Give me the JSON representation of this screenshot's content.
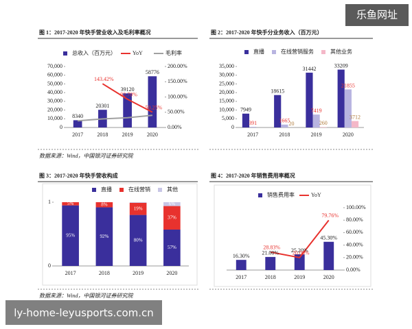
{
  "chart_data": [
    {
      "type": "bar_line",
      "title": "图 1：2017-2020 年快手营业收入及毛利率概况",
      "categories": [
        "2017",
        "2018",
        "2019",
        "2020"
      ],
      "series": [
        {
          "name": "总收入（百万元）",
          "type": "bar",
          "color": "#3a2f9c",
          "values": [
            8340,
            20301,
            39120,
            58776
          ]
        },
        {
          "name": "YoY",
          "type": "line",
          "axis": "y2",
          "color": "#e8322e",
          "values": [
            null,
            143.42,
            92.7,
            50.25
          ],
          "value_labels": [
            null,
            "143.42%",
            "92.70%",
            "50.25%"
          ]
        },
        {
          "name": "毛利率",
          "type": "line",
          "axis": "y2",
          "color": "#a0a0a0",
          "values": [
            22,
            28,
            32,
            40
          ]
        }
      ],
      "ylim": [
        0,
        70000
      ],
      "yticks": [
        0,
        {
          "value": 10000,
          "label": "10,000"
        },
        {
          "value": 20000,
          "label": "20,000"
        },
        {
          "value": 30000,
          "label": "30,000"
        },
        {
          "value": 40000,
          "label": "40,000"
        },
        {
          "value": 50000,
          "label": "50,000"
        },
        {
          "value": 60000,
          "label": "60,000"
        },
        {
          "value": 70000,
          "label": "70,000"
        }
      ],
      "y2lim": [
        0,
        200
      ],
      "y2ticks": [
        {
          "value": 0,
          "label": "0.00%"
        },
        {
          "value": 50,
          "label": "50.00%"
        },
        {
          "value": 100,
          "label": "100.00%"
        },
        {
          "value": 150,
          "label": "150.00%"
        },
        {
          "value": 200,
          "label": "200.00%"
        }
      ]
    },
    {
      "type": "bar",
      "title": "图 2：2017-2020 年快手分业务收入（百万元）",
      "categories": [
        "2017",
        "2018",
        "2019",
        "2020"
      ],
      "series": [
        {
          "name": "直播",
          "type": "bar",
          "color": "#3a2f9c",
          "values": [
            7949,
            18615,
            31442,
            33209
          ]
        },
        {
          "name": "在线营销服务",
          "type": "bar",
          "color": "#b8b4e0",
          "values": [
            391,
            1665,
            7419,
            21855
          ]
        },
        {
          "name": "其他业务",
          "type": "bar",
          "color": "#f4b8c8",
          "values": [
            null,
            20,
            260,
            3712
          ]
        }
      ],
      "ylim": [
        0,
        35000
      ],
      "yticks": [
        0,
        {
          "value": 5000,
          "label": "5,000"
        },
        {
          "value": 10000,
          "label": "10,000"
        },
        {
          "value": 15000,
          "label": "15,000"
        },
        {
          "value": 20000,
          "label": "20,000"
        },
        {
          "value": 25000,
          "label": "25,000"
        },
        {
          "value": 30000,
          "label": "30,000"
        },
        {
          "value": 35000,
          "label": "35,000"
        }
      ]
    },
    {
      "type": "stacked_bar",
      "title": "图 3：2017-2020 年快手营收构成",
      "categories": [
        "2017",
        "2018",
        "2019",
        "2020"
      ],
      "series": [
        {
          "name": "直播",
          "type": "bar",
          "color": "#3a2f9c",
          "values": [
            0.95,
            0.92,
            0.8,
            0.57
          ],
          "value_labels": [
            "95%",
            "92%",
            "80%",
            "57%"
          ]
        },
        {
          "name": "在线营销",
          "type": "bar",
          "color": "#e8322e",
          "values": [
            0.05,
            0.08,
            0.19,
            0.37
          ],
          "value_labels": [
            "5%",
            "8%",
            "19%",
            "37%"
          ]
        },
        {
          "name": "其他",
          "type": "bar",
          "color": "#c8c6e6",
          "values": [
            null,
            null,
            0.01,
            0.06
          ],
          "value_labels": [
            null,
            null,
            null,
            "6%"
          ]
        }
      ],
      "ylim": [
        0,
        1
      ],
      "yticks": [
        0,
        1
      ]
    },
    {
      "type": "bar_line",
      "title": "图 4：2017-2020 年销售费用率概况",
      "categories": [
        "2017",
        "2018",
        "2019",
        "2020"
      ],
      "y_axis_position": "right",
      "series": [
        {
          "name": "销售费用率",
          "type": "bar",
          "color": "#3a2f9c",
          "values": [
            16.3,
            21.0,
            25.2,
            45.3
          ],
          "value_labels": [
            "16.30%",
            "21.00%",
            "25.20%",
            "45.30%"
          ]
        },
        {
          "name": "YoY",
          "type": "line",
          "color": "#e8322e",
          "values": [
            null,
            28.83,
            20.0,
            79.76
          ],
          "value_labels": [
            null,
            "28.83%",
            "20.00%",
            "79.76%"
          ]
        }
      ],
      "ylim": [
        0,
        100
      ],
      "yticks": [
        {
          "value": 0,
          "label": "0.00%"
        },
        {
          "value": 20,
          "label": "20.00%"
        },
        {
          "value": 40,
          "label": "40.00%"
        },
        {
          "value": 60,
          "label": "60.00%"
        },
        {
          "value": 80,
          "label": "80.00%"
        },
        {
          "value": 100,
          "label": "100.00%"
        }
      ]
    }
  ],
  "sources": [
    "数据来源：Wind，中国银河证券研究院",
    "数据来源：Wind，中国银河证券研究院"
  ],
  "watermark": {
    "top": "乐鱼网址",
    "bottom": "ly-home-leyusports.com.cn"
  }
}
